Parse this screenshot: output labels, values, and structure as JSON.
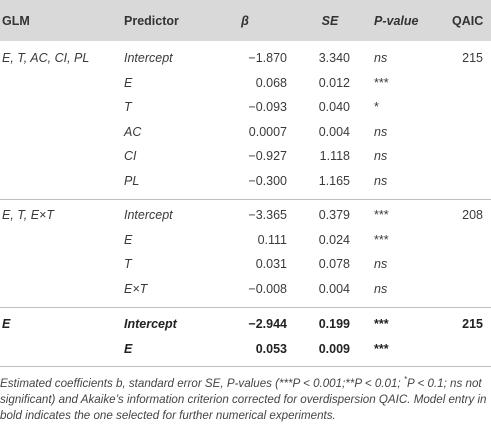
{
  "headers": {
    "glm": "GLM",
    "predictor": "Predictor",
    "beta": "β",
    "se": "SE",
    "pvalue": "P-value",
    "qaic": "QAIC"
  },
  "groups": [
    {
      "glm": "E, T, AC, CI, PL",
      "qaic": "215",
      "rows": [
        {
          "predictor": "Intercept",
          "beta": "−1.870",
          "se": "3.340",
          "p": "ns"
        },
        {
          "predictor": "E",
          "beta": "0.068",
          "se": "0.012",
          "p": "***"
        },
        {
          "predictor": "T",
          "beta": "−0.093",
          "se": "0.040",
          "p": "*"
        },
        {
          "predictor": "AC",
          "beta": "0.0007",
          "se": "0.004",
          "p": "ns"
        },
        {
          "predictor": "CI",
          "beta": "−0.927",
          "se": "1.118",
          "p": "ns"
        },
        {
          "predictor": "PL",
          "beta": "−0.300",
          "se": "1.165",
          "p": "ns"
        }
      ]
    },
    {
      "glm": "E, T, E×T",
      "qaic": "208",
      "rows": [
        {
          "predictor": "Intercept",
          "beta": "−3.365",
          "se": "0.379",
          "p": "***"
        },
        {
          "predictor": "E",
          "beta": "0.111",
          "se": "0.024",
          "p": "***"
        },
        {
          "predictor": "T",
          "beta": "0.031",
          "se": "0.078",
          "p": "ns"
        },
        {
          "predictor": "E×T",
          "beta": "−0.008",
          "se": "0.004",
          "p": "ns"
        }
      ]
    },
    {
      "glm": "E",
      "qaic": "215",
      "bold": true,
      "rows": [
        {
          "predictor": "Intercept",
          "beta": "−2.944",
          "se": "0.199",
          "p": "***"
        },
        {
          "predictor": "E",
          "beta": "0.053",
          "se": "0.009",
          "p": "***"
        }
      ]
    }
  ],
  "caption": {
    "part1": "Estimated coefficients b, standard error SE, P-values (***P < 0.001;**P < 0.01; ",
    "sup": "*",
    "part2": "P < 0.1; ns not significant) and Akaike’s information criterion corrected for overdispersion QAIC. Model entry in bold indicates the one selected for further numerical experiments."
  }
}
